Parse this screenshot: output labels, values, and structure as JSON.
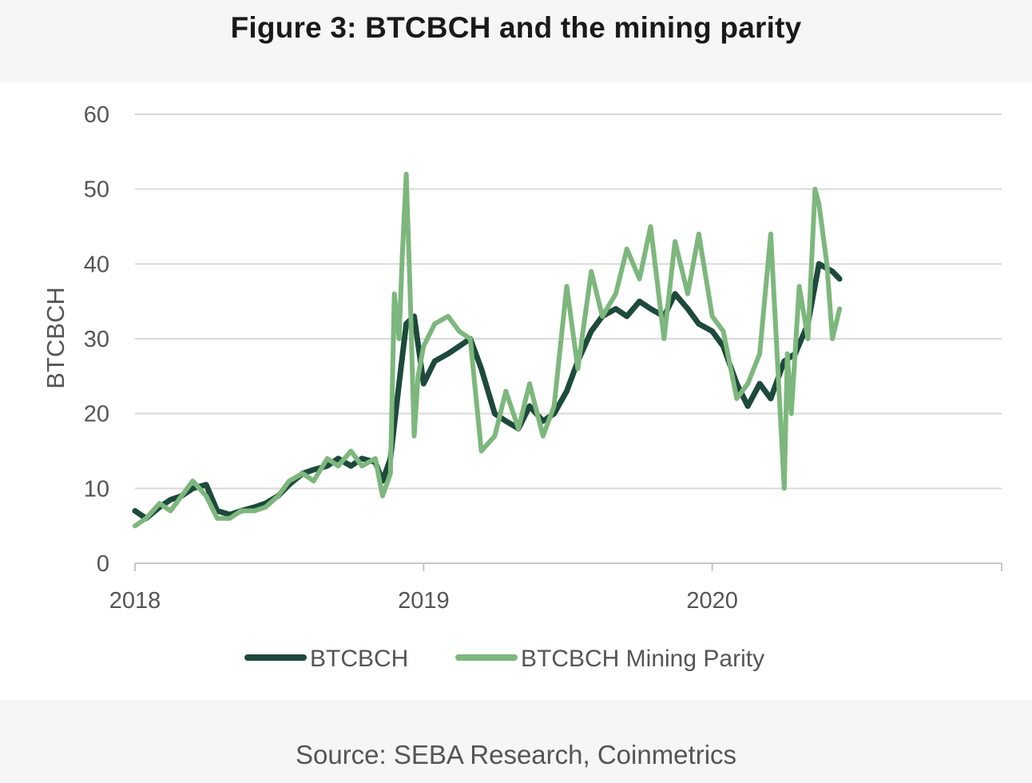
{
  "title": "Figure 3: BTCBCH and the mining parity",
  "source": "Source: SEBA Research, Coinmetrics",
  "chart_data": {
    "type": "line",
    "xlabel": "",
    "ylabel": "BTCBCH",
    "ylim": [
      0,
      60
    ],
    "yticks": [
      "0",
      "10",
      "20",
      "30",
      "40",
      "50",
      "60"
    ],
    "xlim": [
      "2018-01-01",
      "2021-01-01"
    ],
    "xticks": [
      "2018",
      "2019",
      "2020"
    ],
    "grid": "horizontal",
    "legend_position": "bottom",
    "series": [
      {
        "name": "BTCBCH",
        "color": "#1d4a3c",
        "x": [
          "2018-01-01",
          "2018-01-15",
          "2018-02-01",
          "2018-02-15",
          "2018-03-01",
          "2018-03-15",
          "2018-04-01",
          "2018-04-15",
          "2018-05-01",
          "2018-05-15",
          "2018-06-01",
          "2018-06-15",
          "2018-07-01",
          "2018-07-15",
          "2018-08-01",
          "2018-08-15",
          "2018-09-01",
          "2018-09-15",
          "2018-10-01",
          "2018-10-15",
          "2018-11-01",
          "2018-11-10",
          "2018-11-20",
          "2018-12-01",
          "2018-12-10",
          "2018-12-20",
          "2019-01-01",
          "2019-01-15",
          "2019-02-01",
          "2019-02-15",
          "2019-03-01",
          "2019-03-15",
          "2019-04-01",
          "2019-04-15",
          "2019-05-01",
          "2019-05-15",
          "2019-06-01",
          "2019-06-15",
          "2019-07-01",
          "2019-07-15",
          "2019-08-01",
          "2019-08-15",
          "2019-09-01",
          "2019-09-15",
          "2019-10-01",
          "2019-10-15",
          "2019-11-01",
          "2019-11-15",
          "2019-12-01",
          "2019-12-15",
          "2020-01-01",
          "2020-01-15",
          "2020-02-01",
          "2020-02-15",
          "2020-03-01",
          "2020-03-15",
          "2020-04-01",
          "2020-04-15",
          "2020-05-01",
          "2020-05-15",
          "2020-06-01",
          "2020-06-10"
        ],
        "values": [
          7,
          6,
          7.5,
          8.5,
          9,
          10,
          10.5,
          7,
          6.5,
          7,
          7.5,
          8,
          9,
          10.5,
          12,
          12.5,
          13,
          14,
          13,
          14,
          13.5,
          11,
          14,
          24,
          32,
          33,
          24,
          27,
          28,
          29,
          30,
          26,
          20,
          19,
          18,
          21,
          19,
          20,
          23,
          27,
          31,
          33,
          34,
          33,
          35,
          34,
          33,
          36,
          34,
          32,
          31,
          29,
          24,
          21,
          24,
          22,
          27,
          28,
          32,
          40,
          39,
          38
        ]
      },
      {
        "name": "BTCBCH Mining Parity",
        "color": "#7db77d",
        "x": [
          "2018-01-01",
          "2018-01-15",
          "2018-02-01",
          "2018-02-15",
          "2018-03-01",
          "2018-03-15",
          "2018-04-01",
          "2018-04-15",
          "2018-05-01",
          "2018-05-15",
          "2018-06-01",
          "2018-06-15",
          "2018-07-01",
          "2018-07-15",
          "2018-08-01",
          "2018-08-15",
          "2018-09-01",
          "2018-09-15",
          "2018-10-01",
          "2018-10-15",
          "2018-11-01",
          "2018-11-10",
          "2018-11-20",
          "2018-11-25",
          "2018-12-01",
          "2018-12-05",
          "2018-12-10",
          "2018-12-15",
          "2018-12-20",
          "2018-12-25",
          "2019-01-01",
          "2019-01-15",
          "2019-02-01",
          "2019-02-15",
          "2019-03-01",
          "2019-03-15",
          "2019-04-01",
          "2019-04-15",
          "2019-05-01",
          "2019-05-15",
          "2019-06-01",
          "2019-06-15",
          "2019-07-01",
          "2019-07-15",
          "2019-08-01",
          "2019-08-15",
          "2019-09-01",
          "2019-09-15",
          "2019-10-01",
          "2019-10-15",
          "2019-11-01",
          "2019-11-15",
          "2019-12-01",
          "2019-12-15",
          "2020-01-01",
          "2020-01-15",
          "2020-02-01",
          "2020-02-15",
          "2020-03-01",
          "2020-03-15",
          "2020-04-01",
          "2020-04-05",
          "2020-04-10",
          "2020-04-20",
          "2020-05-01",
          "2020-05-10",
          "2020-05-15",
          "2020-05-25",
          "2020-06-01",
          "2020-06-10"
        ],
        "values": [
          5,
          6,
          8,
          7,
          9,
          11,
          9,
          6,
          6,
          7,
          7,
          7.5,
          9,
          11,
          12,
          11,
          14,
          13,
          15,
          13,
          14,
          9,
          12,
          36,
          30,
          41,
          52,
          36,
          17,
          25,
          29,
          32,
          33,
          31,
          30,
          15,
          17,
          23,
          18,
          24,
          17,
          21,
          37,
          26,
          39,
          33,
          36,
          42,
          38,
          45,
          30,
          43,
          36,
          44,
          33,
          31,
          22,
          24,
          28,
          44,
          10,
          28,
          20,
          37,
          30,
          50,
          48,
          40,
          30,
          34
        ]
      }
    ]
  }
}
